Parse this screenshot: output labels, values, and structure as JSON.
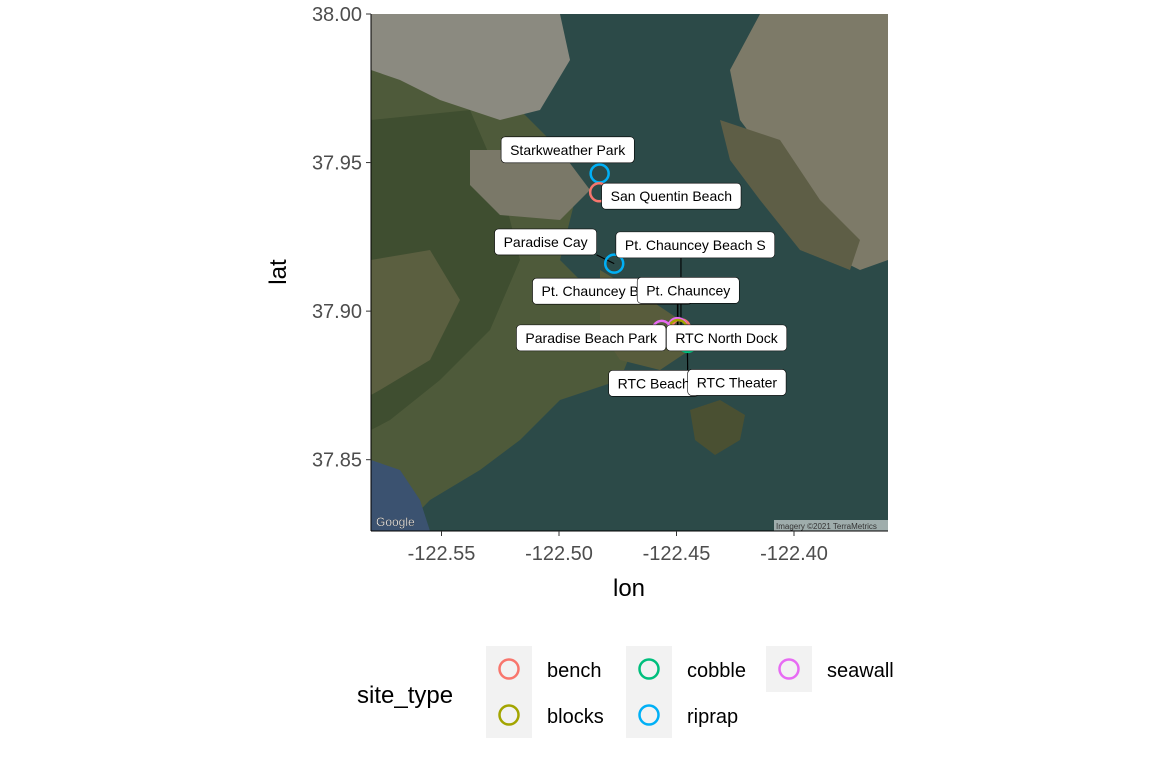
{
  "chart_data": {
    "type": "scatter",
    "background": "satellite-map",
    "map_credits": {
      "left": "Google",
      "right": "Imagery ©2021 TerraMetrics"
    },
    "xlabel": "lon",
    "ylabel": "lat",
    "xlim": [
      -122.58,
      -122.36
    ],
    "ylim": [
      37.826,
      38.0
    ],
    "xticks": [
      -122.55,
      -122.5,
      -122.45,
      -122.4
    ],
    "xtick_labels": [
      "-122.55",
      "-122.50",
      "-122.45",
      "-122.40"
    ],
    "yticks": [
      37.85,
      37.9,
      37.95,
      38.0
    ],
    "ytick_labels": [
      "37.85",
      "37.90",
      "37.95",
      "38.00"
    ],
    "grid": false,
    "legend": {
      "title": "site_type",
      "placement": "bottom",
      "entries": [
        {
          "label": "bench",
          "color": "#F8766D"
        },
        {
          "label": "blocks",
          "color": "#A3A500"
        },
        {
          "label": "cobble",
          "color": "#00BF7D"
        },
        {
          "label": "riprap",
          "color": "#00B0F6"
        },
        {
          "label": "seawall",
          "color": "#E76BF3"
        }
      ]
    },
    "points": [
      {
        "name": "Starkweather Park",
        "x": -122.4827,
        "y": 37.9463,
        "site_type": "riprap",
        "label_x": -122.4963,
        "label_y": 37.9543
      },
      {
        "name": "San Quentin Beach",
        "x": -122.4829,
        "y": 37.94,
        "site_type": "bench",
        "label_x": -122.4522,
        "label_y": 37.9387
      },
      {
        "name": "Paradise Cay",
        "x": -122.4765,
        "y": 37.916,
        "site_type": "riprap",
        "label_x": -122.5057,
        "label_y": 37.9233
      },
      {
        "name": "Pt. Chauncey Beach S",
        "x": -122.4481,
        "y": 37.8942,
        "site_type": "bench",
        "label_x": -122.442,
        "label_y": 37.9223
      },
      {
        "name": "Pt. Chauncey Beach N",
        "x": -122.4496,
        "y": 37.8946,
        "site_type": "seawall",
        "label_x": -122.4773,
        "label_y": 37.9067
      },
      {
        "name": "Pt. Chauncey",
        "x": -122.4494,
        "y": 37.894,
        "site_type": "blocks",
        "label_x": -122.445,
        "label_y": 37.907
      },
      {
        "name": "Paradise Beach Park",
        "x": -122.4563,
        "y": 37.8937,
        "site_type": "seawall",
        "label_x": -122.4863,
        "label_y": 37.891
      },
      {
        "name": "RTC North Dock",
        "x": -122.4461,
        "y": 37.8915,
        "site_type": "riprap",
        "label_x": -122.4287,
        "label_y": 37.891
      },
      {
        "name": "RTC Beach",
        "x": -122.4453,
        "y": 37.8893,
        "site_type": "cobble",
        "label_x": -122.4597,
        "label_y": 37.8757
      },
      {
        "name": "RTC Theater",
        "x": -122.4455,
        "y": 37.8905,
        "site_type": "cobble",
        "label_x": -122.4243,
        "label_y": 37.876
      }
    ]
  }
}
